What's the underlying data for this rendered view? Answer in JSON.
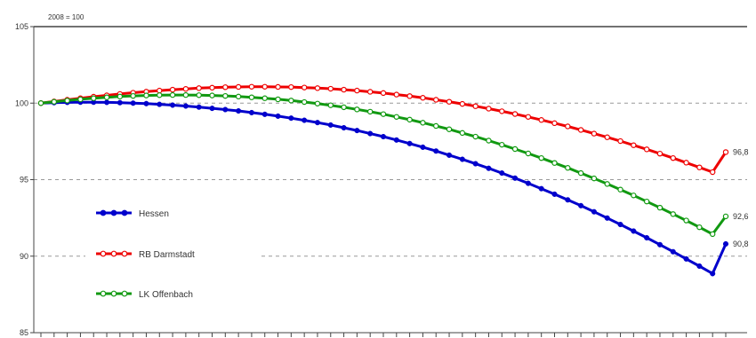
{
  "chart_data": {
    "type": "line",
    "title": "",
    "index_note": "2008 = 100",
    "xlabel": "",
    "ylabel": "",
    "ylim": [
      85,
      105
    ],
    "yticks": [
      85,
      90,
      95,
      100,
      105
    ],
    "x": [
      2008,
      2009,
      2010,
      2011,
      2012,
      2013,
      2014,
      2015,
      2016,
      2017,
      2018,
      2019,
      2020,
      2021,
      2022,
      2023,
      2024,
      2025,
      2026,
      2027,
      2028,
      2029,
      2030,
      2031,
      2032,
      2033,
      2034,
      2035,
      2036,
      2037,
      2038,
      2039,
      2040,
      2041,
      2042,
      2043,
      2044,
      2045,
      2046,
      2047,
      2048,
      2049,
      2050,
      2051,
      2052,
      2053,
      2054,
      2055,
      2056,
      2057,
      2058,
      2059,
      2060
    ],
    "grid": {
      "horizontal_dashed_at": [
        90,
        95,
        100
      ]
    },
    "legend": {
      "position": "left-inside"
    },
    "series": [
      {
        "name": "Hessen",
        "color": "#0000cc",
        "marker": "filled-circle",
        "end_label": "90,8",
        "values": [
          100.0,
          100.03,
          100.05,
          100.06,
          100.06,
          100.05,
          100.03,
          100.0,
          99.97,
          99.92,
          99.87,
          99.81,
          99.74,
          99.66,
          99.58,
          99.49,
          99.38,
          99.27,
          99.15,
          99.02,
          98.88,
          98.73,
          98.57,
          98.39,
          98.21,
          98.01,
          97.81,
          97.59,
          97.36,
          97.12,
          96.87,
          96.6,
          96.33,
          96.04,
          95.74,
          95.43,
          95.1,
          94.76,
          94.41,
          94.05,
          93.68,
          93.3,
          92.9,
          92.49,
          92.07,
          91.64,
          91.2,
          90.75,
          90.29,
          89.82,
          89.35,
          88.86,
          90.8
        ]
      },
      {
        "name": "RB Darmstadt",
        "color": "#ee0000",
        "marker": "open-circle",
        "end_label": "96,8",
        "values": [
          100.0,
          100.11,
          100.22,
          100.32,
          100.42,
          100.51,
          100.6,
          100.68,
          100.75,
          100.82,
          100.88,
          100.93,
          100.98,
          101.01,
          101.04,
          101.06,
          101.07,
          101.07,
          101.06,
          101.05,
          101.02,
          100.98,
          100.94,
          100.88,
          100.82,
          100.74,
          100.66,
          100.56,
          100.46,
          100.35,
          100.22,
          100.09,
          99.95,
          99.8,
          99.64,
          99.47,
          99.29,
          99.1,
          98.9,
          98.69,
          98.48,
          98.25,
          98.01,
          97.77,
          97.52,
          97.25,
          96.98,
          96.7,
          96.41,
          96.11,
          95.8,
          95.49,
          96.8
        ]
      },
      {
        "name": "LK Offenbach",
        "color": "#119911",
        "marker": "open-circle",
        "end_label": "92,6",
        "values": [
          100.0,
          100.09,
          100.17,
          100.25,
          100.32,
          100.38,
          100.43,
          100.47,
          100.5,
          100.52,
          100.53,
          100.53,
          100.52,
          100.5,
          100.47,
          100.43,
          100.38,
          100.32,
          100.25,
          100.17,
          100.07,
          99.97,
          99.86,
          99.73,
          99.59,
          99.44,
          99.28,
          99.1,
          98.92,
          98.72,
          98.51,
          98.29,
          98.05,
          97.81,
          97.55,
          97.28,
          97.0,
          96.71,
          96.41,
          96.09,
          95.77,
          95.43,
          95.08,
          94.72,
          94.35,
          93.97,
          93.57,
          93.17,
          92.75,
          92.33,
          91.89,
          91.44,
          92.6
        ]
      }
    ]
  }
}
